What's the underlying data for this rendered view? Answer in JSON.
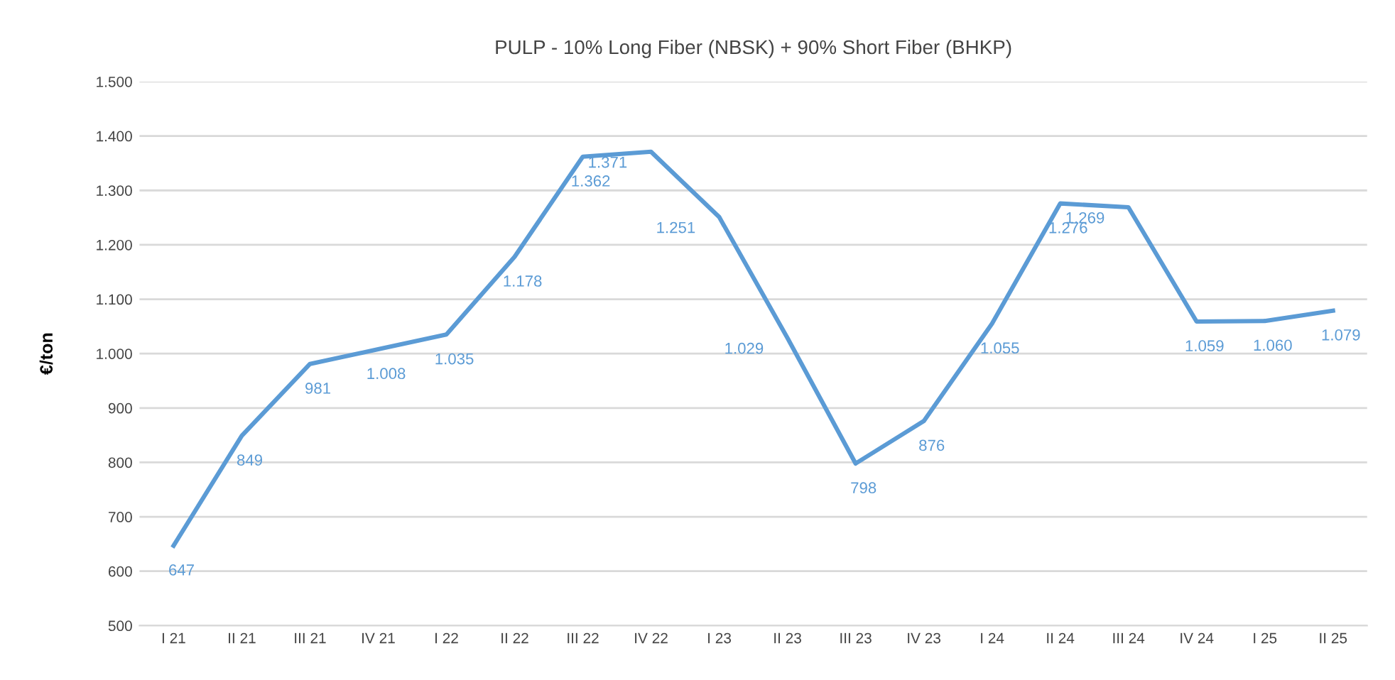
{
  "chart_data": {
    "type": "line",
    "title": "PULP - 10% Long Fiber (NBSK) + 90% Short Fiber (BHKP)",
    "ylabel": "€/ton",
    "categories": [
      "I 21",
      "II 21",
      "III 21",
      "IV 21",
      "I 22",
      "II 22",
      "III 22",
      "IV 22",
      "I 23",
      "II 23",
      "III 23",
      "IV 23",
      "I 24",
      "II 24",
      "III 24",
      "IV 24",
      "I 25",
      "II 25"
    ],
    "series": [
      {
        "color": "#5b9bd5",
        "values": [
          647,
          849,
          981,
          1008,
          1035,
          1178,
          1362,
          1371,
          1251,
          1029,
          798,
          876,
          1055,
          1276,
          1269,
          1059,
          1060,
          1079
        ],
        "value_labels": [
          "647",
          "849",
          "981",
          "1.008",
          "1.035",
          "1.178",
          "1.362",
          "1.371",
          "1.251",
          "1.029",
          "798",
          "876",
          "1.055",
          "1.276",
          "1.269",
          "1.059",
          "1.060",
          "1.079"
        ]
      }
    ],
    "ylim": [
      500,
      1500
    ],
    "yticks": [
      500,
      600,
      700,
      800,
      900,
      {
        "value": 1000,
        "label": "1.000"
      },
      {
        "value": 1100,
        "label": "1.100"
      },
      {
        "value": 1200,
        "label": "1.200"
      },
      {
        "value": 1300,
        "label": "1.300"
      },
      {
        "value": 1400,
        "label": "1.400"
      },
      {
        "value": 1500,
        "label": "1.500"
      }
    ],
    "grid": "y",
    "legend": false,
    "marker": "none",
    "line_style": "solid"
  }
}
